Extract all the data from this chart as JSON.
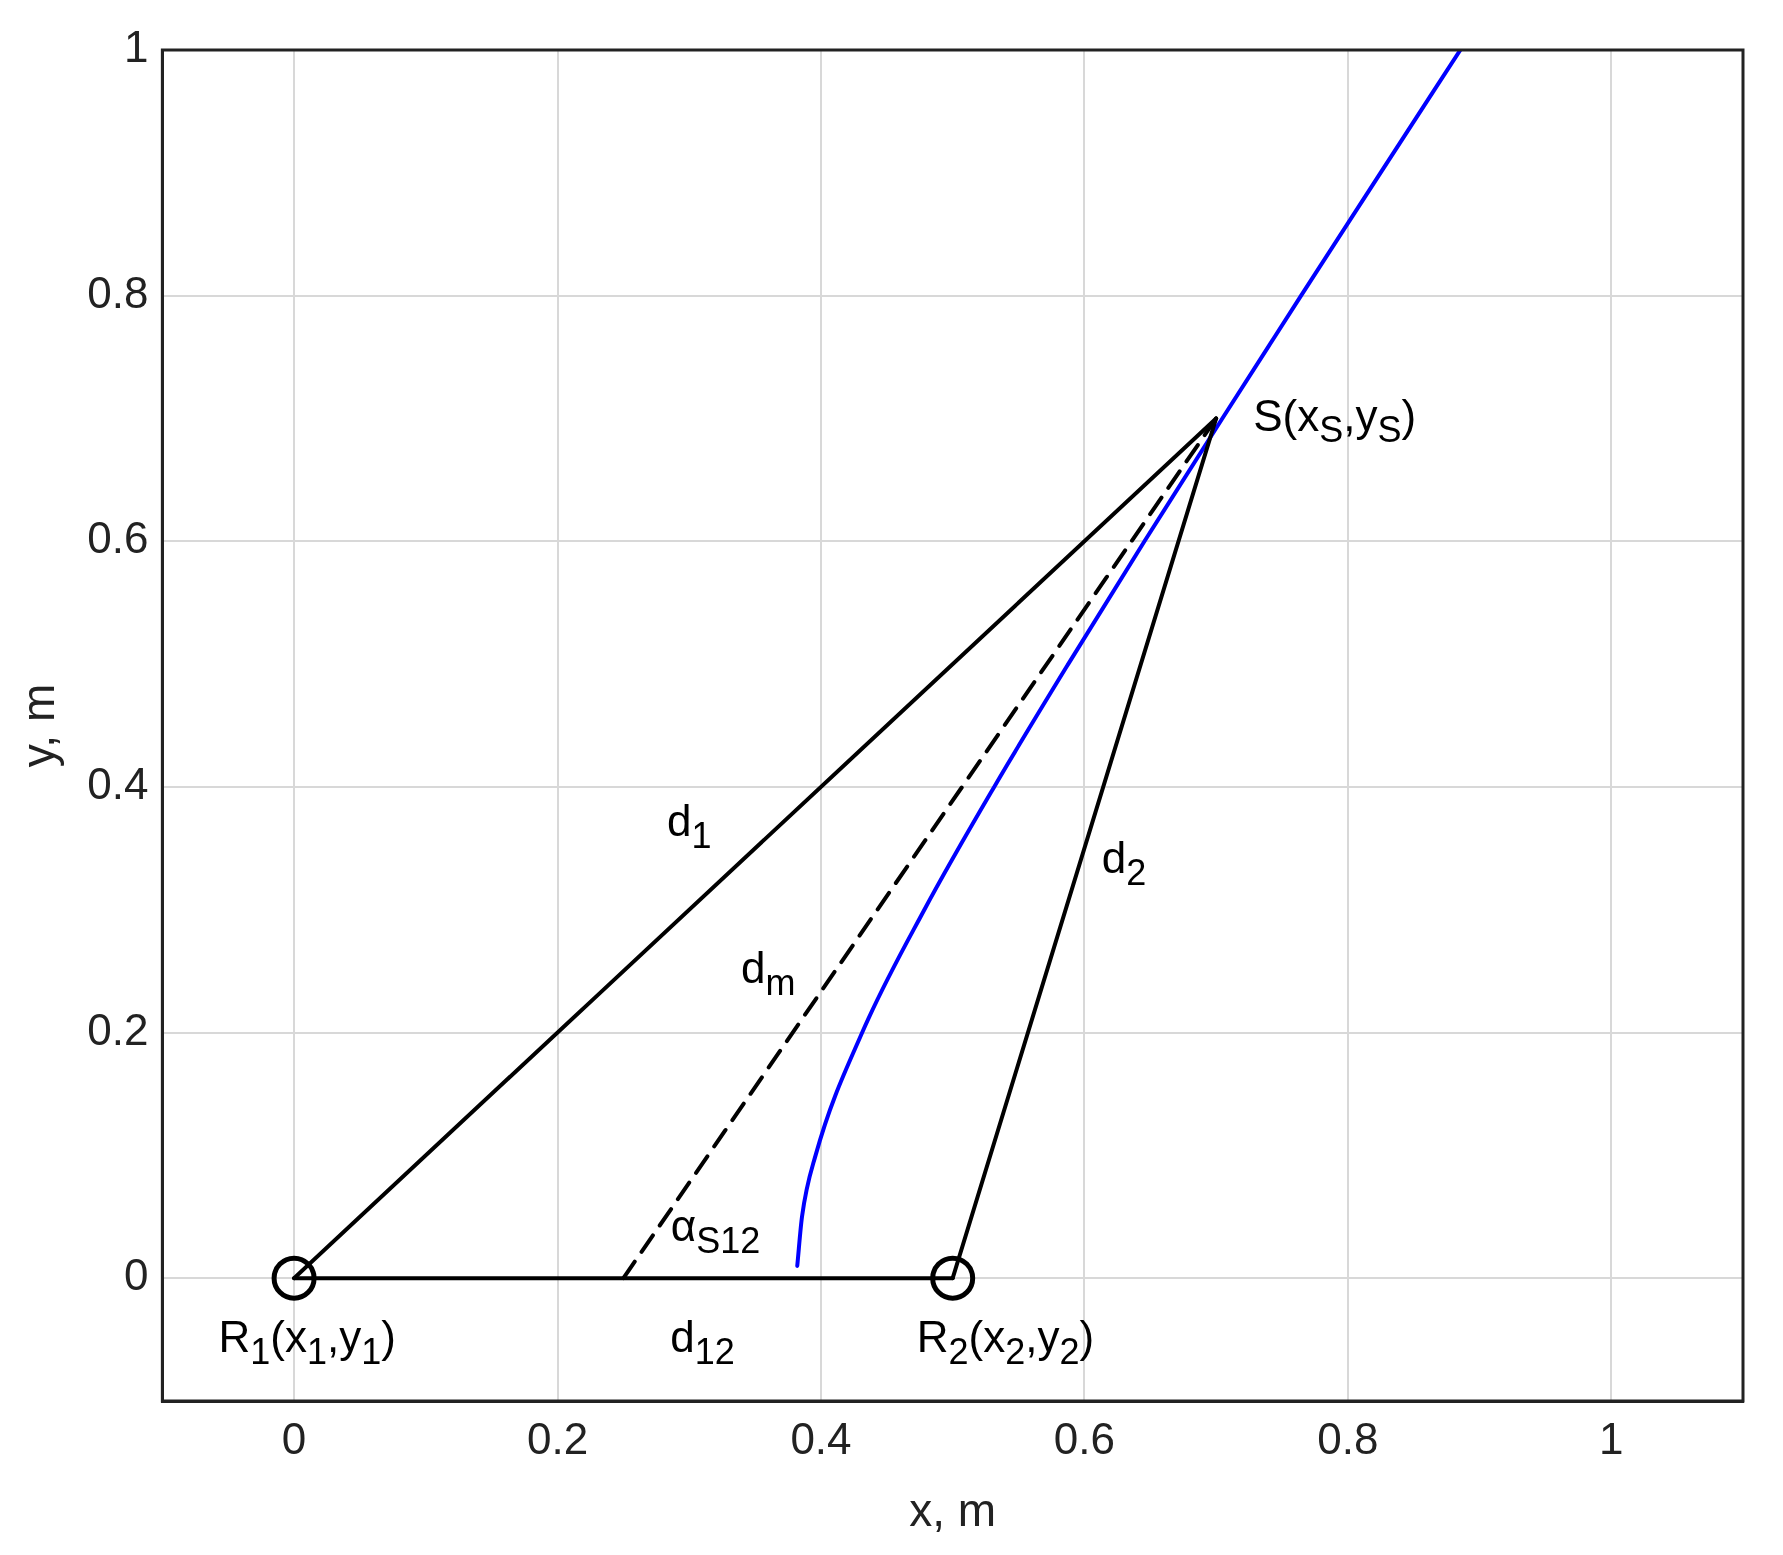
{
  "chart_data": {
    "type": "line",
    "xlabel": "x, m",
    "ylabel": "y, m",
    "xlim": [
      -0.1,
      1.1
    ],
    "ylim": [
      -0.1,
      1
    ],
    "xticks": [
      0,
      0.2,
      0.4,
      0.6,
      0.8,
      1
    ],
    "yticks": [
      0,
      0.2,
      0.4,
      0.6,
      0.8,
      1
    ],
    "grid": true,
    "legend": false,
    "series": [
      {
        "type": "line",
        "color": "#000000",
        "x": [
          0,
          0.7
        ],
        "values": [
          0,
          0.7
        ]
      },
      {
        "type": "line",
        "color": "#000000",
        "x": [
          0.5,
          0.7
        ],
        "values": [
          0,
          0.7
        ]
      },
      {
        "type": "line",
        "color": "#000000",
        "x": [
          0,
          0.5
        ],
        "values": [
          0,
          0
        ]
      },
      {
        "type": "line",
        "color": "#000000",
        "line_style": "dashed",
        "x": [
          0.25,
          0.7
        ],
        "values": [
          0,
          0.7
        ]
      },
      {
        "type": "line",
        "color": "#0000ff",
        "x": [
          0.382,
          0.3856,
          0.3959,
          0.4313,
          0.4785,
          0.5315,
          0.5877,
          0.6456,
          0.7047,
          0.7645,
          0.8248,
          0.8854
        ],
        "values": [
          0.01,
          0.05,
          0.1,
          0.2,
          0.3,
          0.4,
          0.5,
          0.6,
          0.7,
          0.8,
          0.9,
          1.0
        ]
      },
      {
        "type": "scatter",
        "marker": "circle",
        "color": "#000000",
        "x": [
          0,
          0.5
        ],
        "values": [
          0,
          0
        ]
      }
    ],
    "annotations": [
      "S(x$_{S}$,y$_{S}$)",
      "d$_{1}$",
      "d$_{2}$",
      "d$_{m}$",
      "α$_{S12}$",
      "d$_{12}$",
      "R$_{1}$(x$_{1}$,y$_{1}$)",
      "R$_{2}$(x$_{2}$,y$_{2}$)"
    ]
  }
}
